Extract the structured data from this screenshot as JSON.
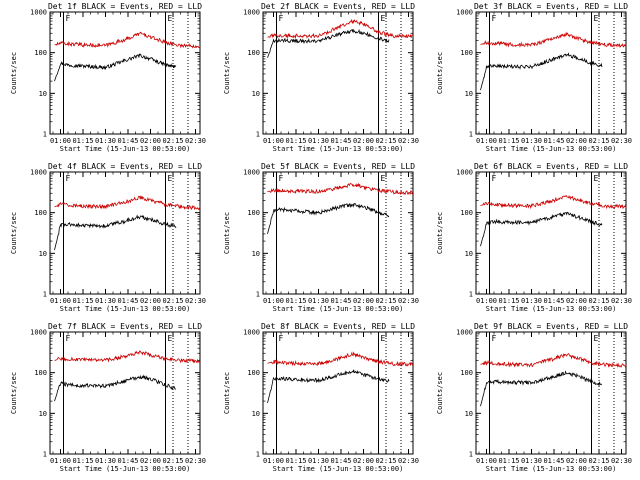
{
  "chart_data": [
    {
      "type": "line",
      "title": "Det 1f BLACK = Events, RED = LLD",
      "xlabel": "Start Time (15-Jun-13 00:53:00)",
      "ylabel": "Counts/sec",
      "yscale": "log",
      "ylim": [
        1,
        1000
      ],
      "xlim": [
        "00:53",
        "02:33"
      ],
      "xticks": [
        "01:00",
        "01:15",
        "01:30",
        "01:45",
        "02:00",
        "02:15",
        "02:30"
      ],
      "yticks": [
        "1",
        "10",
        "100",
        "1000"
      ],
      "markers": [
        {
          "label": "F",
          "time": "01:02",
          "style": "solid"
        },
        {
          "label": "E",
          "time": "02:10",
          "style": "solid"
        },
        {
          "label": "",
          "time": "02:15",
          "style": "dotted"
        },
        {
          "label": "",
          "time": "02:25",
          "style": "dotted"
        }
      ],
      "series": [
        {
          "color": "#000000",
          "start": "00:56",
          "end": "02:17",
          "x": [
            "00:56",
            "01:00",
            "01:05",
            "01:15",
            "01:30",
            "01:45",
            "01:53",
            "02:00",
            "02:10",
            "02:17"
          ],
          "values": [
            20,
            55,
            50,
            47,
            43,
            68,
            85,
            70,
            50,
            45
          ]
        },
        {
          "color": "#cc0000",
          "start": "00:56",
          "end": "02:33",
          "x": [
            "00:56",
            "01:00",
            "01:05",
            "01:15",
            "01:30",
            "01:45",
            "01:53",
            "02:00",
            "02:10",
            "02:20",
            "02:33"
          ],
          "values": [
            155,
            170,
            165,
            155,
            150,
            220,
            300,
            240,
            180,
            150,
            145
          ]
        }
      ]
    },
    {
      "type": "line",
      "title": "Det 2f BLACK = Events, RED = LLD",
      "xlabel": "Start Time (15-Jun-13 00:53:00)",
      "ylabel": "Counts/sec",
      "yscale": "log",
      "ylim": [
        1,
        1000
      ],
      "xlim": [
        "00:53",
        "02:33"
      ],
      "xticks": [
        "01:00",
        "01:15",
        "01:30",
        "01:45",
        "02:00",
        "02:15",
        "02:30"
      ],
      "yticks": [
        "1",
        "10",
        "100",
        "1000"
      ],
      "markers": [
        {
          "label": "F",
          "time": "01:02",
          "style": "solid"
        },
        {
          "label": "E",
          "time": "02:10",
          "style": "solid"
        },
        {
          "label": "",
          "time": "02:15",
          "style": "dotted"
        },
        {
          "label": "",
          "time": "02:25",
          "style": "dotted"
        }
      ],
      "series": [
        {
          "color": "#000000",
          "start": "00:56",
          "end": "02:17",
          "x": [
            "00:56",
            "01:00",
            "01:05",
            "01:15",
            "01:30",
            "01:45",
            "01:53",
            "02:00",
            "02:10",
            "02:17"
          ],
          "values": [
            75,
            190,
            200,
            195,
            190,
            290,
            350,
            300,
            230,
            190
          ]
        },
        {
          "color": "#cc0000",
          "start": "00:56",
          "end": "02:33",
          "x": [
            "00:56",
            "01:00",
            "01:05",
            "01:15",
            "01:30",
            "01:45",
            "01:53",
            "02:00",
            "02:10",
            "02:20",
            "02:33"
          ],
          "values": [
            240,
            260,
            265,
            260,
            255,
            450,
            600,
            500,
            320,
            260,
            255
          ]
        }
      ]
    },
    {
      "type": "line",
      "title": "Det 3f BLACK = Events, RED = LLD",
      "xlabel": "Start Time (15-Jun-13 00:53:00)",
      "ylabel": "Counts/sec",
      "yscale": "log",
      "ylim": [
        1,
        1000
      ],
      "xlim": [
        "00:53",
        "02:33"
      ],
      "xticks": [
        "01:00",
        "01:15",
        "01:30",
        "01:45",
        "02:00",
        "02:15",
        "02:30"
      ],
      "yticks": [
        "1",
        "10",
        "100",
        "1000"
      ],
      "markers": [
        {
          "label": "F",
          "time": "01:02",
          "style": "solid"
        },
        {
          "label": "E",
          "time": "02:10",
          "style": "solid"
        },
        {
          "label": "",
          "time": "02:15",
          "style": "dotted"
        },
        {
          "label": "",
          "time": "02:25",
          "style": "dotted"
        }
      ],
      "series": [
        {
          "color": "#000000",
          "start": "00:56",
          "end": "02:17",
          "x": [
            "00:56",
            "01:00",
            "01:05",
            "01:15",
            "01:30",
            "01:45",
            "01:53",
            "02:00",
            "02:10",
            "02:17"
          ],
          "values": [
            12,
            45,
            48,
            45,
            45,
            70,
            90,
            75,
            55,
            48
          ]
        },
        {
          "color": "#cc0000",
          "start": "00:56",
          "end": "02:33",
          "x": [
            "00:56",
            "01:00",
            "01:05",
            "01:15",
            "01:30",
            "01:45",
            "01:53",
            "02:00",
            "02:10",
            "02:20",
            "02:33"
          ],
          "values": [
            160,
            175,
            170,
            160,
            155,
            220,
            280,
            230,
            175,
            155,
            150
          ]
        }
      ]
    },
    {
      "type": "line",
      "title": "Det 4f BLACK = Events, RED = LLD",
      "xlabel": "Start Time (15-Jun-13 00:53:00)",
      "ylabel": "Counts/sec",
      "yscale": "log",
      "ylim": [
        1,
        1000
      ],
      "xlim": [
        "00:53",
        "02:33"
      ],
      "xticks": [
        "01:00",
        "01:15",
        "01:30",
        "01:45",
        "02:00",
        "02:15",
        "02:30"
      ],
      "yticks": [
        "1",
        "10",
        "100",
        "1000"
      ],
      "markers": [
        {
          "label": "F",
          "time": "01:02",
          "style": "solid"
        },
        {
          "label": "E",
          "time": "02:10",
          "style": "solid"
        },
        {
          "label": "",
          "time": "02:15",
          "style": "dotted"
        },
        {
          "label": "",
          "time": "02:25",
          "style": "dotted"
        }
      ],
      "series": [
        {
          "color": "#000000",
          "start": "00:56",
          "end": "02:17",
          "x": [
            "00:56",
            "01:00",
            "01:05",
            "01:15",
            "01:30",
            "01:45",
            "01:53",
            "02:00",
            "02:10",
            "02:17"
          ],
          "values": [
            12,
            50,
            52,
            48,
            47,
            65,
            80,
            68,
            52,
            45
          ]
        },
        {
          "color": "#cc0000",
          "start": "00:56",
          "end": "02:33",
          "x": [
            "00:56",
            "01:00",
            "01:05",
            "01:15",
            "01:30",
            "01:45",
            "01:53",
            "02:00",
            "02:10",
            "02:20",
            "02:33"
          ],
          "values": [
            140,
            160,
            155,
            145,
            140,
            190,
            240,
            200,
            160,
            140,
            130
          ]
        }
      ]
    },
    {
      "type": "line",
      "title": "Det 5f BLACK = Events, RED = LLD",
      "xlabel": "Start Time (15-Jun-13 00:53:00)",
      "ylabel": "Counts/sec",
      "yscale": "log",
      "ylim": [
        1,
        1000
      ],
      "xlim": [
        "00:53",
        "02:33"
      ],
      "xticks": [
        "01:00",
        "01:15",
        "01:30",
        "01:45",
        "02:00",
        "02:15",
        "02:30"
      ],
      "yticks": [
        "1",
        "10",
        "100",
        "1000"
      ],
      "markers": [
        {
          "label": "F",
          "time": "01:02",
          "style": "solid"
        },
        {
          "label": "E",
          "time": "02:10",
          "style": "solid"
        },
        {
          "label": "",
          "time": "02:15",
          "style": "dotted"
        },
        {
          "label": "",
          "time": "02:25",
          "style": "dotted"
        }
      ],
      "series": [
        {
          "color": "#000000",
          "start": "00:56",
          "end": "02:17",
          "x": [
            "00:56",
            "01:00",
            "01:05",
            "01:15",
            "01:30",
            "01:45",
            "01:53",
            "02:00",
            "02:10",
            "02:17"
          ],
          "values": [
            30,
            110,
            120,
            110,
            100,
            140,
            160,
            140,
            100,
            85
          ]
        },
        {
          "color": "#cc0000",
          "start": "00:56",
          "end": "02:33",
          "x": [
            "00:56",
            "01:00",
            "01:05",
            "01:15",
            "01:30",
            "01:45",
            "01:53",
            "02:00",
            "02:10",
            "02:20",
            "02:33"
          ],
          "values": [
            330,
            360,
            350,
            340,
            330,
            420,
            500,
            430,
            350,
            320,
            310
          ]
        }
      ]
    },
    {
      "type": "line",
      "title": "Det 6f BLACK = Events, RED = LLD",
      "xlabel": "Start Time (15-Jun-13 00:53:00)",
      "ylabel": "Counts/sec",
      "yscale": "log",
      "ylim": [
        1,
        1000
      ],
      "xlim": [
        "00:53",
        "02:33"
      ],
      "xticks": [
        "01:00",
        "01:15",
        "01:30",
        "01:45",
        "02:00",
        "02:15",
        "02:30"
      ],
      "yticks": [
        "1",
        "10",
        "100",
        "1000"
      ],
      "markers": [
        {
          "label": "F",
          "time": "01:02",
          "style": "solid"
        },
        {
          "label": "E",
          "time": "02:10",
          "style": "solid"
        },
        {
          "label": "",
          "time": "02:15",
          "style": "dotted"
        },
        {
          "label": "",
          "time": "02:25",
          "style": "dotted"
        }
      ],
      "series": [
        {
          "color": "#000000",
          "start": "00:56",
          "end": "02:17",
          "x": [
            "00:56",
            "01:00",
            "01:05",
            "01:15",
            "01:30",
            "01:45",
            "01:53",
            "02:00",
            "02:10",
            "02:17"
          ],
          "values": [
            15,
            55,
            60,
            58,
            57,
            80,
            95,
            80,
            60,
            50
          ]
        },
        {
          "color": "#cc0000",
          "start": "00:56",
          "end": "02:33",
          "x": [
            "00:56",
            "01:00",
            "01:05",
            "01:15",
            "01:30",
            "01:45",
            "01:53",
            "02:00",
            "02:10",
            "02:20",
            "02:33"
          ],
          "values": [
            150,
            165,
            160,
            150,
            145,
            200,
            260,
            210,
            165,
            145,
            140
          ]
        }
      ]
    },
    {
      "type": "line",
      "title": "Det 7f BLACK = Events, RED = LLD",
      "xlabel": "Start Time (15-Jun-13 00:53:00)",
      "ylabel": "Counts/sec",
      "yscale": "log",
      "ylim": [
        1,
        1000
      ],
      "xlim": [
        "00:53",
        "02:33"
      ],
      "xticks": [
        "01:00",
        "01:15",
        "01:30",
        "01:45",
        "02:00",
        "02:15",
        "02:30"
      ],
      "yticks": [
        "1",
        "10",
        "100",
        "1000"
      ],
      "markers": [
        {
          "label": "F",
          "time": "01:02",
          "style": "solid"
        },
        {
          "label": "E",
          "time": "02:10",
          "style": "solid"
        },
        {
          "label": "",
          "time": "02:15",
          "style": "dotted"
        },
        {
          "label": "",
          "time": "02:25",
          "style": "dotted"
        }
      ],
      "series": [
        {
          "color": "#000000",
          "start": "00:56",
          "end": "02:17",
          "x": [
            "00:56",
            "01:00",
            "01:05",
            "01:15",
            "01:30",
            "01:45",
            "01:53",
            "02:00",
            "02:10",
            "02:17"
          ],
          "values": [
            20,
            55,
            50,
            48,
            47,
            65,
            80,
            70,
            50,
            40
          ]
        },
        {
          "color": "#cc0000",
          "start": "00:56",
          "end": "02:33",
          "x": [
            "00:56",
            "01:00",
            "01:05",
            "01:15",
            "01:30",
            "01:45",
            "01:53",
            "02:00",
            "02:10",
            "02:20",
            "02:33"
          ],
          "values": [
            200,
            220,
            215,
            205,
            200,
            260,
            320,
            270,
            220,
            200,
            195
          ]
        }
      ]
    },
    {
      "type": "line",
      "title": "Det 8f BLACK = Events, RED = LLD",
      "xlabel": "Start Time (15-Jun-13 00:53:00)",
      "ylabel": "Counts/sec",
      "yscale": "log",
      "ylim": [
        1,
        1000
      ],
      "xlim": [
        "00:53",
        "02:33"
      ],
      "xticks": [
        "01:00",
        "01:15",
        "01:30",
        "01:45",
        "02:00",
        "02:15",
        "02:30"
      ],
      "yticks": [
        "1",
        "10",
        "100",
        "1000"
      ],
      "markers": [
        {
          "label": "F",
          "time": "01:02",
          "style": "solid"
        },
        {
          "label": "E",
          "time": "02:10",
          "style": "solid"
        },
        {
          "label": "",
          "time": "02:15",
          "style": "dotted"
        },
        {
          "label": "",
          "time": "02:25",
          "style": "dotted"
        }
      ],
      "series": [
        {
          "color": "#000000",
          "start": "00:56",
          "end": "02:17",
          "x": [
            "00:56",
            "01:00",
            "01:05",
            "01:15",
            "01:30",
            "01:45",
            "01:53",
            "02:00",
            "02:10",
            "02:17"
          ],
          "values": [
            18,
            70,
            72,
            68,
            65,
            90,
            110,
            90,
            70,
            60
          ]
        },
        {
          "color": "#cc0000",
          "start": "00:56",
          "end": "02:33",
          "x": [
            "00:56",
            "01:00",
            "01:05",
            "01:15",
            "01:30",
            "01:45",
            "01:53",
            "02:00",
            "02:10",
            "02:20",
            "02:33"
          ],
          "values": [
            170,
            185,
            180,
            170,
            165,
            230,
            290,
            240,
            185,
            165,
            160
          ]
        }
      ]
    },
    {
      "type": "line",
      "title": "Det 9f BLACK = Events, RED = LLD",
      "xlabel": "Start Time (15-Jun-13 00:53:00)",
      "ylabel": "Counts/sec",
      "yscale": "log",
      "ylim": [
        1,
        1000
      ],
      "xlim": [
        "00:53",
        "02:33"
      ],
      "xticks": [
        "01:00",
        "01:15",
        "01:30",
        "01:45",
        "02:00",
        "02:15",
        "02:30"
      ],
      "yticks": [
        "1",
        "10",
        "100",
        "1000"
      ],
      "markers": [
        {
          "label": "F",
          "time": "01:02",
          "style": "solid"
        },
        {
          "label": "E",
          "time": "02:10",
          "style": "solid"
        },
        {
          "label": "",
          "time": "02:15",
          "style": "dotted"
        },
        {
          "label": "",
          "time": "02:25",
          "style": "dotted"
        }
      ],
      "series": [
        {
          "color": "#000000",
          "start": "00:56",
          "end": "02:17",
          "x": [
            "00:56",
            "01:00",
            "01:05",
            "01:15",
            "01:30",
            "01:45",
            "01:53",
            "02:00",
            "02:10",
            "02:17"
          ],
          "values": [
            15,
            55,
            60,
            58,
            57,
            80,
            100,
            85,
            60,
            50
          ]
        },
        {
          "color": "#cc0000",
          "start": "00:56",
          "end": "02:33",
          "x": [
            "00:56",
            "01:00",
            "01:05",
            "01:15",
            "01:30",
            "01:45",
            "01:53",
            "02:00",
            "02:10",
            "02:20",
            "02:33"
          ],
          "values": [
            160,
            175,
            170,
            160,
            155,
            220,
            280,
            230,
            175,
            155,
            150
          ]
        }
      ]
    }
  ]
}
